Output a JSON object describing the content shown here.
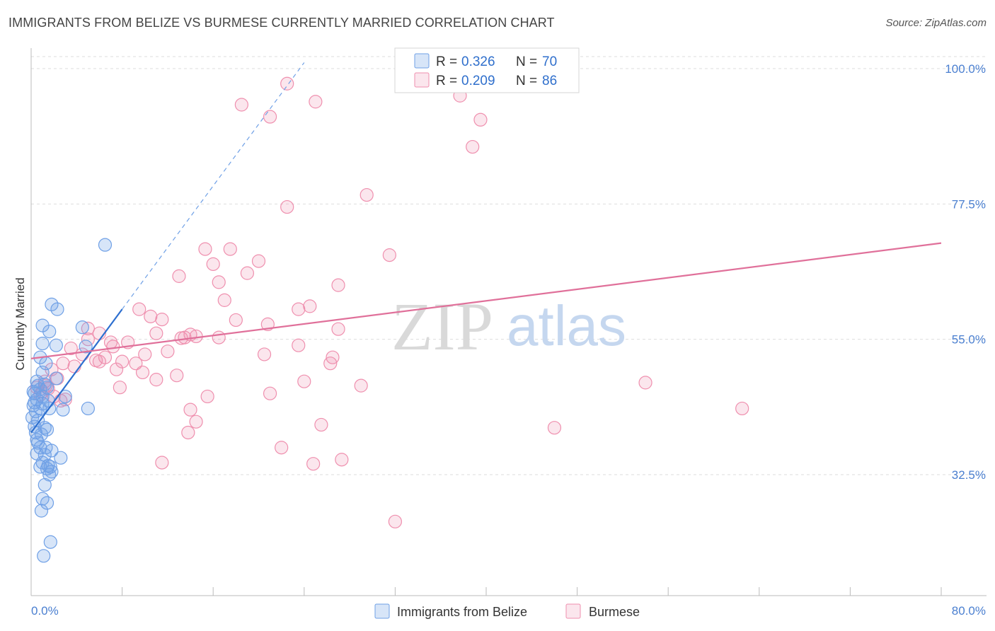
{
  "title": "IMMIGRANTS FROM BELIZE VS BURMESE CURRENTLY MARRIED CORRELATION CHART",
  "source": "Source: ZipAtlas.com",
  "watermark": {
    "zip": "ZIP",
    "atlas": "atlas"
  },
  "colors": {
    "blue": "#6fa0e6",
    "blue_fill": "rgba(111,160,230,0.28)",
    "blue_line": "#2d6fcf",
    "pink": "#ef8fae",
    "pink_fill": "rgba(239,143,174,0.22)",
    "pink_line": "#e0709a",
    "grid": "#dddddd",
    "tick_label": "#4a7fd0"
  },
  "legend": {
    "blue": {
      "r_label": "R =",
      "r_value": "0.326",
      "n_label": "N =",
      "n_value": "70"
    },
    "pink": {
      "r_label": "R =",
      "r_value": "0.209",
      "n_label": "N =",
      "n_value": "86"
    }
  },
  "bottom_legend": {
    "blue": "Immigrants from Belize",
    "pink": "Burmese"
  },
  "chart_data": {
    "type": "scatter",
    "title": "IMMIGRANTS FROM BELIZE VS BURMESE CURRENTLY MARRIED CORRELATION CHART",
    "xlabel": "",
    "ylabel": "Currently Married",
    "xlim": [
      0,
      80
    ],
    "ylim": [
      10,
      102
    ],
    "x_tick_labels": [
      "0.0%",
      "80.0%"
    ],
    "x_minor_ticks": [
      0,
      8,
      16,
      24,
      32,
      40,
      48,
      56,
      64,
      72,
      80
    ],
    "y_ticks": [
      32.5,
      55.0,
      77.5,
      100.0
    ],
    "y_tick_labels": [
      "32.5%",
      "55.0%",
      "77.5%",
      "100.0%"
    ],
    "series": [
      {
        "name": "Immigrants from Belize",
        "color": "blue",
        "R": 0.326,
        "N": 70,
        "trend": {
          "x": [
            0,
            8
          ],
          "y": [
            39.5,
            60.0
          ]
        },
        "trend_dashed": {
          "x": [
            8,
            24
          ],
          "y": [
            60.0,
            101.0
          ]
        },
        "points": [
          [
            6.5,
            70.7
          ],
          [
            1.8,
            60.8
          ],
          [
            2.3,
            60.0
          ],
          [
            1.0,
            57.3
          ],
          [
            4.5,
            57.0
          ],
          [
            1.6,
            56.3
          ],
          [
            1.0,
            54.3
          ],
          [
            2.2,
            54.0
          ],
          [
            4.8,
            53.8
          ],
          [
            0.8,
            52.0
          ],
          [
            1.3,
            51.0
          ],
          [
            1.0,
            49.5
          ],
          [
            2.2,
            48.5
          ],
          [
            0.5,
            48.0
          ],
          [
            1.2,
            47.5
          ],
          [
            0.8,
            46.7
          ],
          [
            0.3,
            46.0
          ],
          [
            1.0,
            45.5
          ],
          [
            0.5,
            45.0
          ],
          [
            0.3,
            44.5
          ],
          [
            1.5,
            44.8
          ],
          [
            0.2,
            44.0
          ],
          [
            0.8,
            43.5
          ],
          [
            0.4,
            43.0
          ],
          [
            3.0,
            45.5
          ],
          [
            1.6,
            43.5
          ],
          [
            2.8,
            43.3
          ],
          [
            5.0,
            43.5
          ],
          [
            0.1,
            42.0
          ],
          [
            0.6,
            41.5
          ],
          [
            0.3,
            40.5
          ],
          [
            1.2,
            40.3
          ],
          [
            1.4,
            40.0
          ],
          [
            0.4,
            39.5
          ],
          [
            0.9,
            39.2
          ],
          [
            0.5,
            38.3
          ],
          [
            0.6,
            37.8
          ],
          [
            0.8,
            37.0
          ],
          [
            1.3,
            37.0
          ],
          [
            1.8,
            36.5
          ],
          [
            0.5,
            36.0
          ],
          [
            1.2,
            35.8
          ],
          [
            2.6,
            35.3
          ],
          [
            1.0,
            34.5
          ],
          [
            1.5,
            34.0
          ],
          [
            0.8,
            33.8
          ],
          [
            1.4,
            33.5
          ],
          [
            1.7,
            33.8
          ],
          [
            1.8,
            33.0
          ],
          [
            1.6,
            32.5
          ],
          [
            1.2,
            30.8
          ],
          [
            1.0,
            28.5
          ],
          [
            1.4,
            27.8
          ],
          [
            0.9,
            26.5
          ],
          [
            1.7,
            21.3
          ],
          [
            1.1,
            19.0
          ],
          [
            0.6,
            47.3
          ],
          [
            1.4,
            47.0
          ],
          [
            0.2,
            46.3
          ],
          [
            1.0,
            44.3
          ]
        ]
      },
      {
        "name": "Burmese",
        "color": "pink",
        "R": 0.209,
        "N": 86,
        "trend": {
          "x": [
            0,
            80
          ],
          "y": [
            51.8,
            71.0
          ]
        },
        "points": [
          [
            22.5,
            97.5
          ],
          [
            18.5,
            94.0
          ],
          [
            25.0,
            94.5
          ],
          [
            37.7,
            95.5
          ],
          [
            21.0,
            92.0
          ],
          [
            39.5,
            91.5
          ],
          [
            38.8,
            87.0
          ],
          [
            29.5,
            79.0
          ],
          [
            22.5,
            77.0
          ],
          [
            15.3,
            70.0
          ],
          [
            17.5,
            70.0
          ],
          [
            31.5,
            69.0
          ],
          [
            20.0,
            68.0
          ],
          [
            16.0,
            67.5
          ],
          [
            13.0,
            65.5
          ],
          [
            19.0,
            66.0
          ],
          [
            16.5,
            64.5
          ],
          [
            27.0,
            64.0
          ],
          [
            17.0,
            61.5
          ],
          [
            9.5,
            60.0
          ],
          [
            23.5,
            60.0
          ],
          [
            24.5,
            60.5
          ],
          [
            10.5,
            58.8
          ],
          [
            11.5,
            58.3
          ],
          [
            18.0,
            58.2
          ],
          [
            27.0,
            56.7
          ],
          [
            5.0,
            56.8
          ],
          [
            6.0,
            56.0
          ],
          [
            11.0,
            56.0
          ],
          [
            14.0,
            55.8
          ],
          [
            13.5,
            55.3
          ],
          [
            14.5,
            55.5
          ],
          [
            16.5,
            55.3
          ],
          [
            5.0,
            55.0
          ],
          [
            8.5,
            54.5
          ],
          [
            7.0,
            54.5
          ],
          [
            7.2,
            53.8
          ],
          [
            3.5,
            53.5
          ],
          [
            12.0,
            53.0
          ],
          [
            23.5,
            54.0
          ],
          [
            4.5,
            52.5
          ],
          [
            10.0,
            52.5
          ],
          [
            20.5,
            52.5
          ],
          [
            26.5,
            52.0
          ],
          [
            6.5,
            52.0
          ],
          [
            6.0,
            51.3
          ],
          [
            2.8,
            51.0
          ],
          [
            8.0,
            51.3
          ],
          [
            9.2,
            51.0
          ],
          [
            3.8,
            50.5
          ],
          [
            1.8,
            50.0
          ],
          [
            7.5,
            50.0
          ],
          [
            12.8,
            49.0
          ],
          [
            11.0,
            48.3
          ],
          [
            1.2,
            48.0
          ],
          [
            2.3,
            48.5
          ],
          [
            7.8,
            47.0
          ],
          [
            24.0,
            48.0
          ],
          [
            29.0,
            47.3
          ],
          [
            54.0,
            47.8
          ],
          [
            1.5,
            46.8
          ],
          [
            1.0,
            46.3
          ],
          [
            0.8,
            45.8
          ],
          [
            3.0,
            45.0
          ],
          [
            21.0,
            46.0
          ],
          [
            15.5,
            45.5
          ],
          [
            14.0,
            43.3
          ],
          [
            14.5,
            41.3
          ],
          [
            13.8,
            39.5
          ],
          [
            25.5,
            40.8
          ],
          [
            46.0,
            40.3
          ],
          [
            62.5,
            43.5
          ],
          [
            22.0,
            37.0
          ],
          [
            11.5,
            34.5
          ],
          [
            24.8,
            34.3
          ],
          [
            27.3,
            35.0
          ],
          [
            32.0,
            24.7
          ],
          [
            2.0,
            45.5
          ],
          [
            0.5,
            47.0
          ],
          [
            1.3,
            47.3
          ],
          [
            2.6,
            44.8
          ],
          [
            5.7,
            51.5
          ],
          [
            9.8,
            49.5
          ],
          [
            13.2,
            55.2
          ],
          [
            20.8,
            57.5
          ],
          [
            26.3,
            51.0
          ]
        ]
      }
    ]
  }
}
